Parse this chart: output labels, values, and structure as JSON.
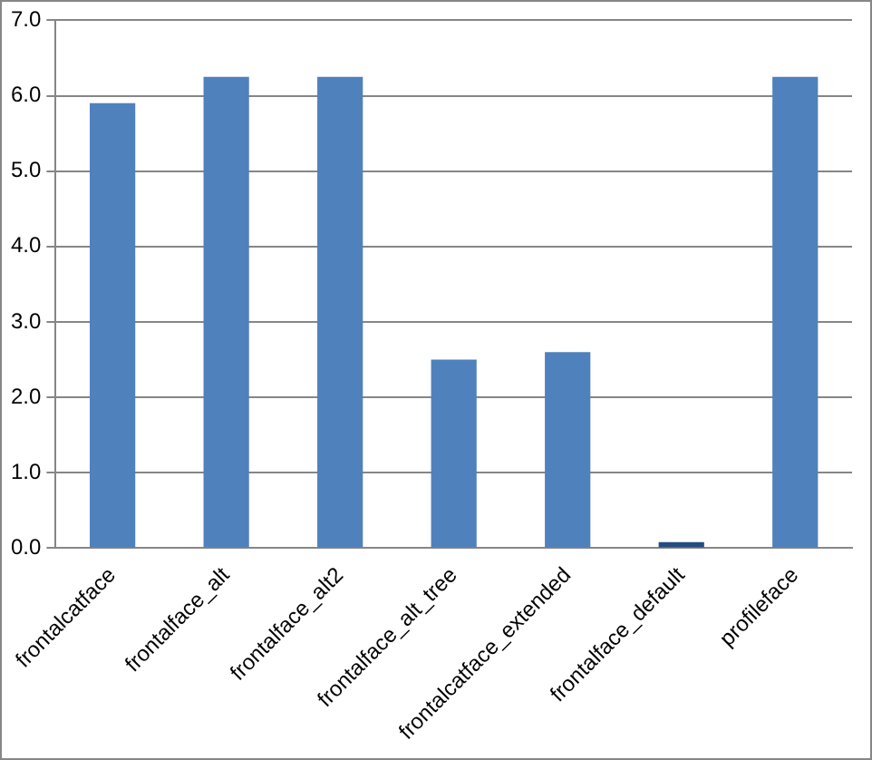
{
  "chart_data": {
    "type": "bar",
    "categories": [
      "frontalcatface",
      "frontalface_alt",
      "frontalface_alt2",
      "frontalface_alt_tree",
      "frontalcatface_extended",
      "frontalface_default",
      "profileface"
    ],
    "values": [
      5.9,
      6.25,
      6.25,
      2.5,
      2.6,
      0.08,
      6.25
    ],
    "colors": [
      "#4f81bd",
      "#4f81bd",
      "#4f81bd",
      "#4f81bd",
      "#4f81bd",
      "#254c80",
      "#4f81bd"
    ],
    "ylim": [
      0,
      7
    ],
    "yticks": [
      {
        "value": 0,
        "label": "0.0"
      },
      {
        "value": 1,
        "label": "1.0"
      },
      {
        "value": 2,
        "label": "2.0"
      },
      {
        "value": 3,
        "label": "3.0"
      },
      {
        "value": 4,
        "label": "4.0"
      },
      {
        "value": 5,
        "label": "5.0"
      },
      {
        "value": 6,
        "label": "6.0"
      },
      {
        "value": 7,
        "label": "7.0"
      }
    ],
    "grid": "y",
    "legend": false
  }
}
